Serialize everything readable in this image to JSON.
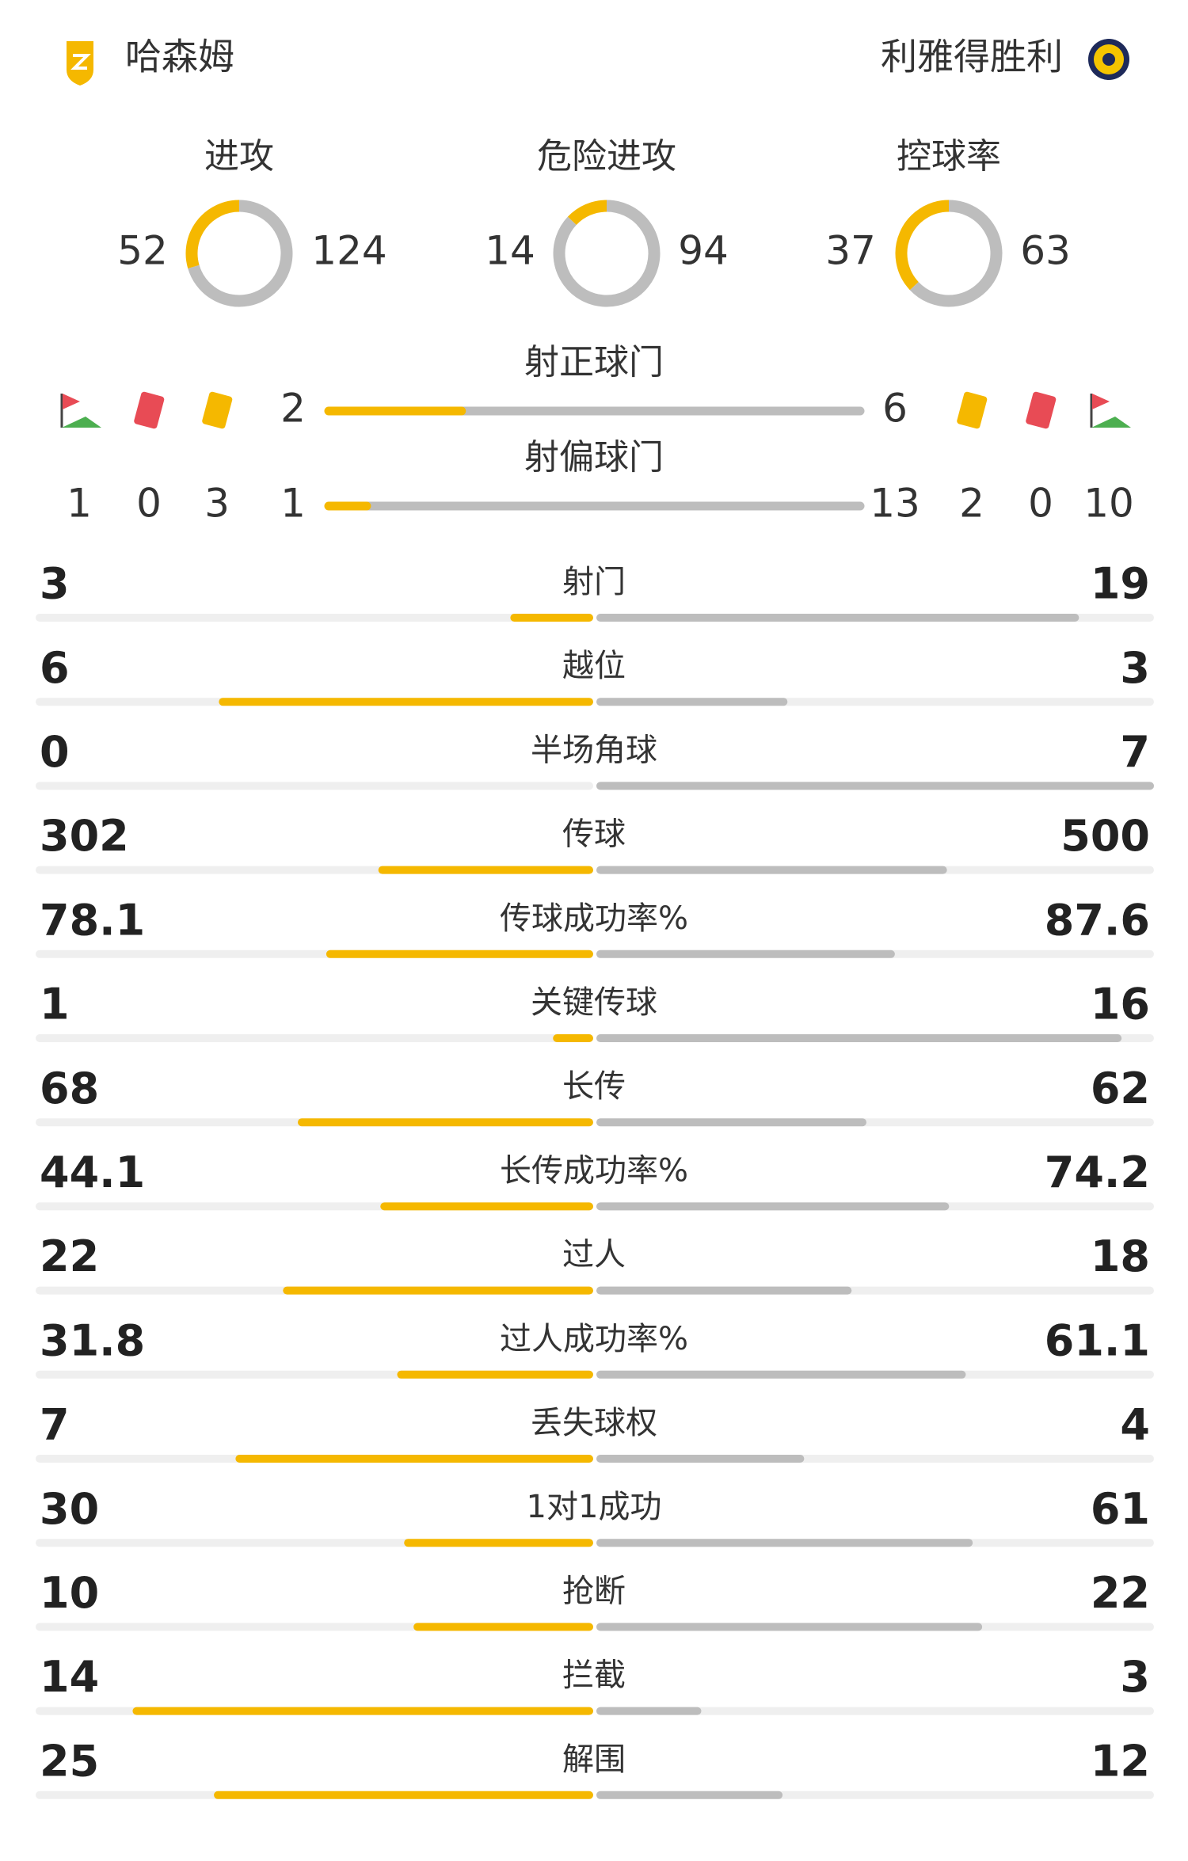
{
  "header": {
    "home_team": "哈森姆",
    "away_team": "利雅得胜利"
  },
  "donuts": [
    {
      "label": "进攻",
      "home": 52,
      "away": 124
    },
    {
      "label": "危险进攻",
      "home": 14,
      "away": 94
    },
    {
      "label": "控球率",
      "home": 37,
      "away": 63
    }
  ],
  "shots_on": {
    "label": "射正球门",
    "home": 2,
    "away": 6
  },
  "shots_off": {
    "label": "射偏球门",
    "home": 1,
    "away": 13
  },
  "cards": {
    "home": {
      "corners": 1,
      "red": 0,
      "yellow": 3
    },
    "away": {
      "yellow": 2,
      "red": 0,
      "corners": 10
    }
  },
  "stats": [
    {
      "label": "射门",
      "home": 3,
      "away": 19
    },
    {
      "label": "越位",
      "home": 6,
      "away": 3
    },
    {
      "label": "半场角球",
      "home": 0,
      "away": 7
    },
    {
      "label": "传球",
      "home": 302,
      "away": 500
    },
    {
      "label": "传球成功率%",
      "home": 78.1,
      "away": 87.6
    },
    {
      "label": "关键传球",
      "home": 1,
      "away": 16
    },
    {
      "label": "长传",
      "home": 68,
      "away": 62
    },
    {
      "label": "长传成功率%",
      "home": 44.1,
      "away": 74.2
    },
    {
      "label": "过人",
      "home": 22,
      "away": 18
    },
    {
      "label": "过人成功率%",
      "home": 31.8,
      "away": 61.1
    },
    {
      "label": "丢失球权",
      "home": 7,
      "away": 4
    },
    {
      "label": "1对1成功",
      "home": 30,
      "away": 61
    },
    {
      "label": "抢断",
      "home": 10,
      "away": 22
    },
    {
      "label": "拦截",
      "home": 14,
      "away": 3
    },
    {
      "label": "解围",
      "home": 25,
      "away": 12
    }
  ]
}
